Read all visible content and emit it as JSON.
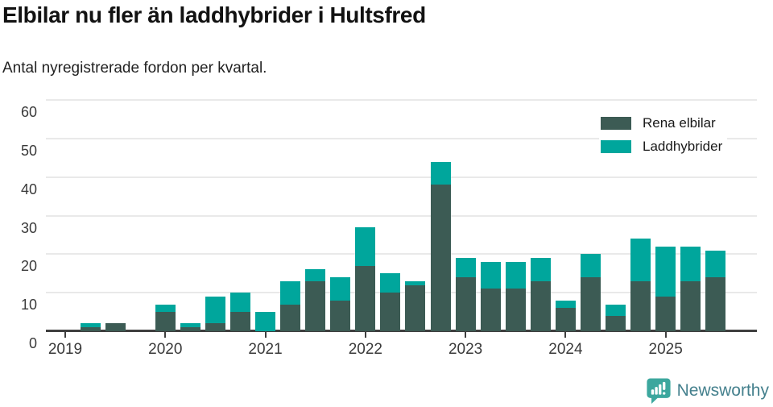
{
  "header": {
    "title": "Elbilar nu fler än laddhybrider i Hultsfred",
    "subtitle": "Antal nyregistrerade fordon per kvartal."
  },
  "chart_data": {
    "type": "bar",
    "stacked": true,
    "title": "Elbilar nu fler än laddhybrider i Hultsfred",
    "subtitle": "Antal nyregistrerade fordon per kvartal.",
    "categories": [
      "2019 Q1",
      "2019 Q2",
      "2019 Q3",
      "2019 Q4",
      "2020 Q1",
      "2020 Q2",
      "2020 Q3",
      "2020 Q4",
      "2021 Q1",
      "2021 Q2",
      "2021 Q3",
      "2021 Q4",
      "2022 Q1",
      "2022 Q2",
      "2022 Q3",
      "2022 Q4",
      "2023 Q1",
      "2023 Q2",
      "2023 Q3",
      "2023 Q4",
      "2024 Q1",
      "2024 Q2",
      "2024 Q3",
      "2024 Q4",
      "2025 Q1",
      "2025 Q2",
      "2025 Q3"
    ],
    "series": [
      {
        "name": "Rena elbilar",
        "color": "#3C5B54",
        "values": [
          0,
          1,
          2,
          0,
          5,
          1,
          2,
          5,
          0,
          7,
          13,
          8,
          17,
          10,
          12,
          38,
          14,
          11,
          11,
          13,
          6,
          14,
          4,
          13,
          9,
          13,
          14
        ]
      },
      {
        "name": "Laddhybrider",
        "color": "#00A69C",
        "values": [
          0,
          1,
          0,
          0,
          2,
          1,
          7,
          5,
          5,
          6,
          3,
          6,
          10,
          5,
          1,
          6,
          5,
          7,
          7,
          6,
          2,
          6,
          3,
          11,
          13,
          9,
          7
        ]
      }
    ],
    "xlabel": "",
    "ylabel": "",
    "ylim": [
      0,
      60
    ],
    "yticks": [
      0,
      10,
      20,
      30,
      40,
      50,
      60
    ],
    "xtick_labels": [
      "2019",
      "2020",
      "2021",
      "2022",
      "2023",
      "2024",
      "2025"
    ],
    "xtick_quarter_index": [
      0,
      4,
      8,
      12,
      16,
      20,
      24
    ],
    "grid": true,
    "legend_position": "top-right"
  },
  "legend": {
    "items": [
      {
        "label": "Rena elbilar",
        "color": "#3C5B54"
      },
      {
        "label": "Laddhybrider",
        "color": "#00A69C"
      }
    ]
  },
  "footer": {
    "brand": "Newsworthy",
    "logo_icon": "newsworthy-speech-bubble-chart-icon"
  },
  "colors": {
    "elbilar_dark": "#3C5B54",
    "laddhybrider_teal": "#00A69C",
    "gridline": "#E9E9E9",
    "axis": "#3F3F3F",
    "logo_bubble": "#3CA79E",
    "logo_word": "#44808D"
  }
}
